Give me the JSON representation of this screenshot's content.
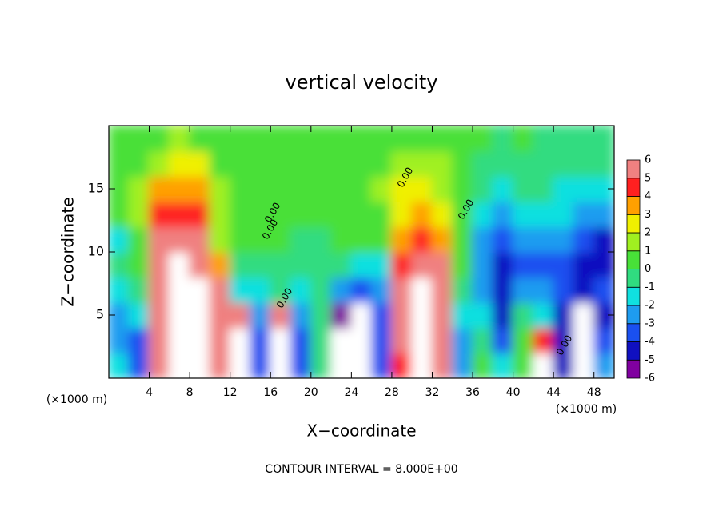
{
  "chart_data": {
    "type": "heatmap",
    "title": "vertical velocity",
    "x_label": "X−coordinate",
    "y_label": "Z−coordinate",
    "x_unit_left": "(×1000 m)",
    "x_unit_right": "(×1000 m)",
    "footnote": "CONTOUR INTERVAL = 8.000E+00",
    "contour_labels": [
      "0.00",
      "0.00",
      "0.00",
      "0.00",
      "0.00",
      "0.00"
    ],
    "xlim": [
      0,
      50
    ],
    "ylim": [
      0,
      20
    ],
    "xticks": [
      4,
      8,
      12,
      16,
      20,
      24,
      28,
      32,
      36,
      40,
      44,
      48
    ],
    "yticks": [
      5,
      10,
      15
    ],
    "x": [
      1,
      3,
      5,
      7,
      9,
      11,
      13,
      15,
      17,
      19,
      21,
      23,
      25,
      27,
      29,
      31,
      33,
      35,
      37,
      39,
      41,
      43,
      45,
      47,
      49
    ],
    "y": [
      1,
      3,
      5,
      7,
      9,
      11,
      13,
      15,
      17,
      19
    ],
    "z": [
      [
        -2,
        -4,
        6,
        7,
        7,
        5,
        7,
        -4,
        7,
        -4,
        -1,
        -7,
        -7,
        -4,
        4,
        7,
        6,
        -3,
        0,
        -2,
        0,
        7,
        -5,
        -7,
        -3
      ],
      [
        -3,
        -4,
        6,
        7,
        7,
        6,
        7,
        -4,
        7,
        -4,
        -1,
        -7,
        -7,
        -4,
        5,
        7,
        6,
        -3,
        -1,
        -4,
        0,
        4,
        -5,
        -7,
        -4
      ],
      [
        -3,
        -2,
        5,
        7,
        7,
        6,
        5,
        -3,
        5,
        -3,
        -1,
        -6,
        -7,
        -4,
        5,
        7,
        6,
        -2,
        -2,
        -5,
        -1,
        -2,
        -5,
        -7,
        -5
      ],
      [
        -2,
        -1,
        6,
        7,
        7,
        5,
        -2,
        -2,
        -1,
        -2,
        -1,
        -3,
        -4,
        -3,
        5,
        7,
        6,
        -1,
        -3,
        -5,
        -3,
        -3,
        -4,
        -5,
        -4
      ],
      [
        -1,
        0,
        6,
        7,
        6,
        3,
        -1,
        -1,
        -1,
        -1,
        -1,
        -1,
        -2,
        -2,
        4,
        6,
        5,
        0,
        -3,
        -5,
        -4,
        -4,
        -4,
        -5,
        -5
      ],
      [
        -2,
        0,
        5,
        5,
        5,
        1,
        0,
        0,
        0,
        -1,
        -1,
        0,
        0,
        0,
        3,
        4,
        3,
        0,
        -3,
        -4,
        -3,
        -3,
        -3,
        -4,
        -5
      ],
      [
        0,
        1,
        4,
        4,
        4,
        1,
        0,
        0,
        0,
        0,
        0,
        0,
        0,
        0,
        2,
        3,
        2,
        0,
        -2,
        -3,
        -2,
        -2,
        -2,
        -3,
        -3
      ],
      [
        0,
        1,
        3,
        3,
        3,
        1,
        0,
        0,
        0,
        0,
        0,
        0,
        0,
        1,
        2,
        2,
        1,
        0,
        -1,
        -2,
        -1,
        -1,
        -2,
        -2,
        -2
      ],
      [
        0,
        0,
        1,
        2,
        2,
        0,
        0,
        0,
        0,
        0,
        0,
        0,
        0,
        0,
        1,
        1,
        1,
        0,
        -1,
        -1,
        -1,
        -1,
        -1,
        -1,
        -1
      ],
      [
        0,
        0,
        0,
        1,
        0,
        0,
        0,
        0,
        0,
        0,
        0,
        0,
        0,
        0,
        0,
        0,
        0,
        0,
        0,
        -1,
        0,
        -1,
        -1,
        -1,
        -1
      ]
    ],
    "colorbar": {
      "ticks": [
        -6,
        -5,
        -4,
        -3,
        -2,
        -1,
        0,
        1,
        2,
        3,
        4,
        5,
        6
      ],
      "colors": [
        "#8000a0",
        "#1010c0",
        "#1a50f0",
        "#1e9cf0",
        "#10e0e0",
        "#30dc80",
        "#48e038",
        "#a0f020",
        "#f0f000",
        "#ffa000",
        "#ff2020",
        "#f08080"
      ],
      "out_of_range_color": "#ffffff"
    }
  }
}
